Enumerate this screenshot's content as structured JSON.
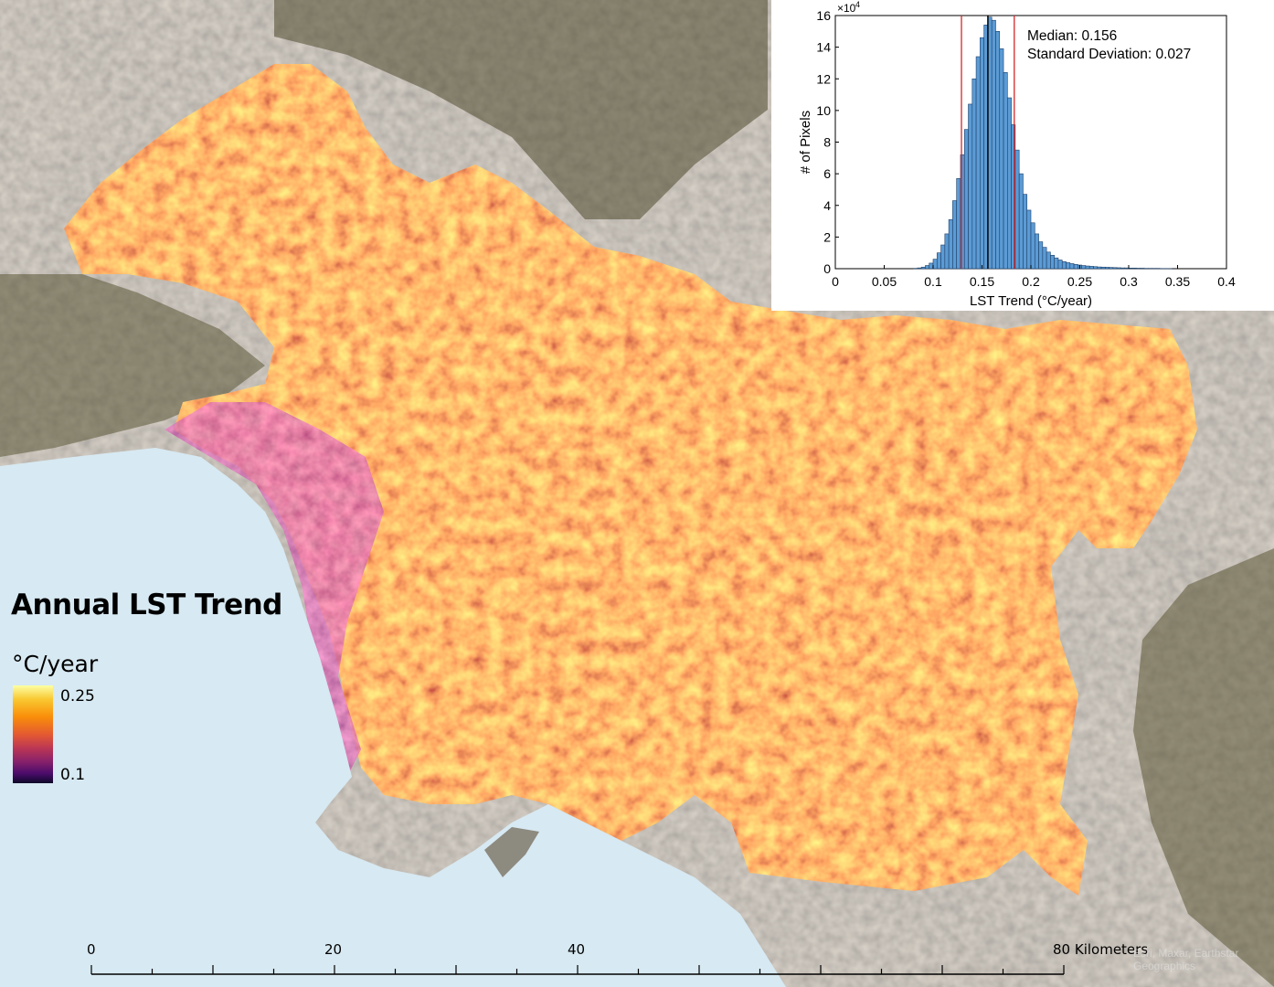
{
  "legend": {
    "title": "Annual LST Trend",
    "unit": "°C/year",
    "max_label": "0.25",
    "min_label": "0.1",
    "ramp_colors": [
      "#fcffa4",
      "#f98e09",
      "#bc3754",
      "#4b0c6b",
      "#0d0829"
    ]
  },
  "scale_bar": {
    "labels": [
      "0",
      "20",
      "40",
      "80 Kilometers"
    ],
    "credit": "Esri, Maxar, Earthstar Geographics"
  },
  "chart_data": {
    "type": "bar",
    "xlabel": "LST Trend (°C/year)",
    "ylabel": "# of Pixels",
    "y_exponent": "×10",
    "y_exponent_power": "4",
    "xlim": [
      0,
      0.4
    ],
    "ylim": [
      0,
      16
    ],
    "x_ticks": [
      "0",
      "0.05",
      "0.1",
      "0.15",
      "0.2",
      "0.25",
      "0.3",
      "0.35",
      "0.4"
    ],
    "y_ticks": [
      "0",
      "2",
      "4",
      "6",
      "8",
      "10",
      "12",
      "14",
      "16"
    ],
    "median_label": "Median: 0.156",
    "std_label": "Standard Deviation: 0.027",
    "median": 0.156,
    "std_lines": [
      0.129,
      0.183
    ],
    "bin_width": 0.004,
    "bin_start": 0.08,
    "counts": [
      0.02,
      0.05,
      0.1,
      0.2,
      0.35,
      0.6,
      1.0,
      1.5,
      2.2,
      3.1,
      4.3,
      5.7,
      7.2,
      8.8,
      10.4,
      12.0,
      13.4,
      14.6,
      15.4,
      15.9,
      15.7,
      15.0,
      13.9,
      12.4,
      10.8,
      9.1,
      7.5,
      6.0,
      4.7,
      3.7,
      2.9,
      2.2,
      1.7,
      1.35,
      1.05,
      0.85,
      0.68,
      0.55,
      0.45,
      0.38,
      0.32,
      0.27,
      0.23,
      0.2,
      0.17,
      0.15,
      0.13,
      0.11,
      0.1,
      0.09,
      0.08,
      0.07,
      0.06,
      0.05,
      0.05,
      0.04,
      0.04,
      0.03,
      0.03,
      0.02,
      0.02,
      0.02,
      0.02,
      0.01,
      0.01,
      0.01
    ],
    "bar_color": "#5b9bd5",
    "line_color": "#d62728"
  }
}
